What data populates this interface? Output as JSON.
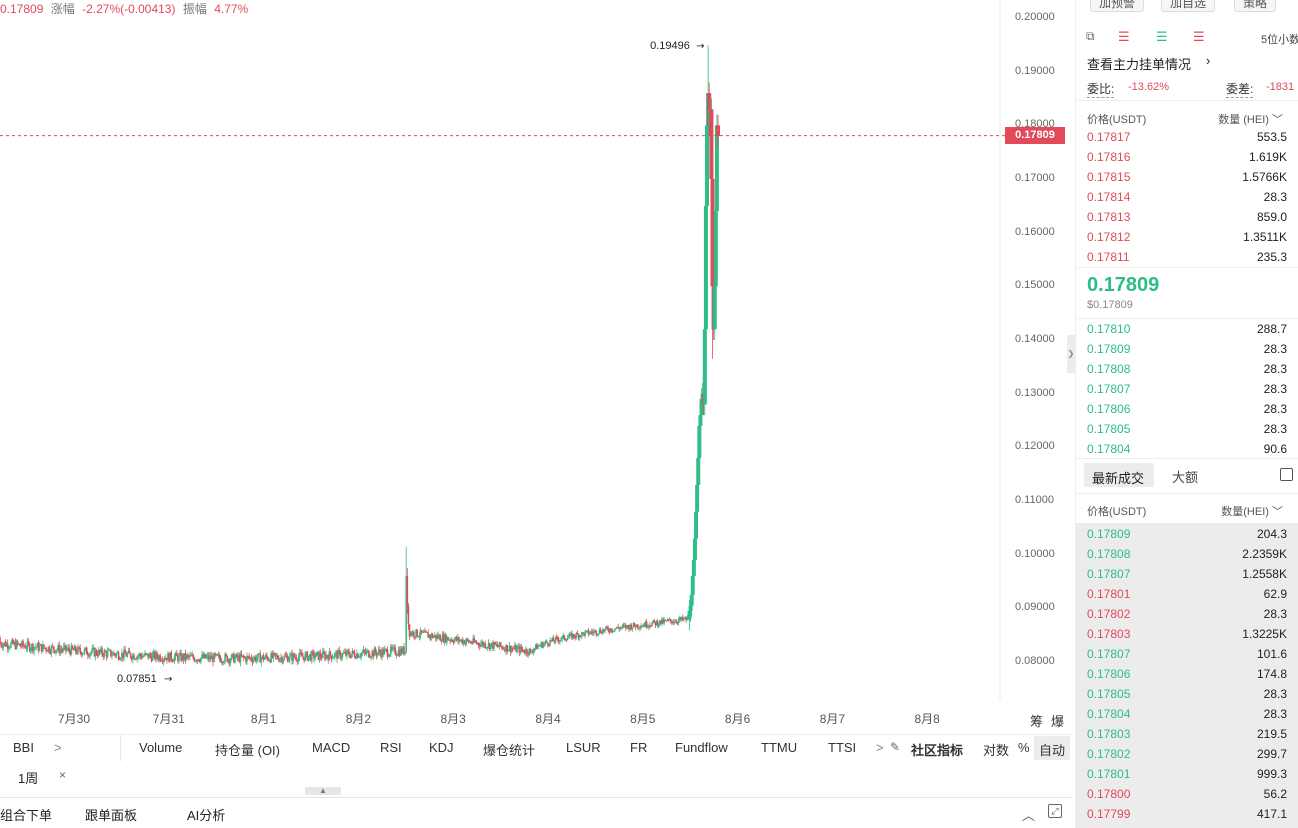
{
  "header": {
    "price": "0.17809",
    "change_label": "涨幅",
    "change": "-2.27%(-0.00413)",
    "amplitude_label": "振幅",
    "amplitude": "4.77%"
  },
  "chart_data": {
    "type": "candlestick",
    "y_ticks": [
      "0.20000",
      "0.19000",
      "0.18000",
      "0.17000",
      "0.16000",
      "0.15000",
      "0.14000",
      "0.13000",
      "0.12000",
      "0.11000",
      "0.10000",
      "0.09000",
      "0.08000"
    ],
    "ylim": [
      0.0775,
      0.2015
    ],
    "x_ticks": [
      "7月30",
      "7月31",
      "8月1",
      "8月2",
      "8月3",
      "8月4",
      "8月5",
      "8月6",
      "8月7",
      "8月8"
    ],
    "last_price_tag": "0.17809",
    "high_marker": "0.19496",
    "low_marker": "0.07851",
    "colors": {
      "up": "#2ebd85",
      "down": "#e04a59"
    }
  },
  "chart_controls": {
    "chips_label": "筹",
    "liquidation_label": "爆"
  },
  "indicators": {
    "left": "BBI",
    "items": [
      "Volume",
      "持仓量 (OI)",
      "MACD",
      "RSI",
      "KDJ",
      "爆仓统计",
      "LSUR",
      "FR",
      "Fundflow",
      "TTMU",
      "TTSI"
    ],
    "community": "社区指标",
    "log_label": "对数",
    "percent_label": "%",
    "auto_label": "自动"
  },
  "timeframe": {
    "active": "1周"
  },
  "bottom_tabs": [
    "组合下单",
    "跟单面板",
    "AI分析"
  ],
  "right_panel": {
    "top_buttons": [
      "加预警",
      "加自选",
      "策略"
    ],
    "precision": "5位小数",
    "main_orders_link": "查看主力挂单情况",
    "ratio_label": "委比:",
    "ratio": "-13.62%",
    "diff_label": "委差:",
    "diff": "-1831",
    "price_col": "价格(USDT)",
    "qty_col": "数量 (HEI)",
    "asks": [
      {
        "p": "0.17817",
        "q": "553.5"
      },
      {
        "p": "0.17816",
        "q": "1.619K"
      },
      {
        "p": "0.17815",
        "q": "1.5766K"
      },
      {
        "p": "0.17814",
        "q": "28.3"
      },
      {
        "p": "0.17813",
        "q": "859.0"
      },
      {
        "p": "0.17812",
        "q": "1.3511K"
      },
      {
        "p": "0.17811",
        "q": "235.3"
      }
    ],
    "last_price": "0.17809",
    "last_price_usd": "$0.17809",
    "bids": [
      {
        "p": "0.17810",
        "q": "288.7"
      },
      {
        "p": "0.17809",
        "q": "28.3"
      },
      {
        "p": "0.17808",
        "q": "28.3"
      },
      {
        "p": "0.17807",
        "q": "28.3"
      },
      {
        "p": "0.17806",
        "q": "28.3"
      },
      {
        "p": "0.17805",
        "q": "28.3"
      },
      {
        "p": "0.17804",
        "q": "90.6"
      }
    ],
    "trades_tab_active": "最新成交",
    "trades_tab_other": "大额",
    "trades_price_col": "价格(USDT)",
    "trades_qty_col": "数量(HEI)",
    "trades": [
      {
        "p": "0.17809",
        "q": "204.3",
        "side": "up"
      },
      {
        "p": "0.17808",
        "q": "2.2359K",
        "side": "up"
      },
      {
        "p": "0.17807",
        "q": "1.2558K",
        "side": "up"
      },
      {
        "p": "0.17801",
        "q": "62.9",
        "side": "down"
      },
      {
        "p": "0.17802",
        "q": "28.3",
        "side": "down"
      },
      {
        "p": "0.17803",
        "q": "1.3225K",
        "side": "down"
      },
      {
        "p": "0.17807",
        "q": "101.6",
        "side": "up"
      },
      {
        "p": "0.17806",
        "q": "174.8",
        "side": "up"
      },
      {
        "p": "0.17805",
        "q": "28.3",
        "side": "up"
      },
      {
        "p": "0.17804",
        "q": "28.3",
        "side": "up"
      },
      {
        "p": "0.17803",
        "q": "219.5",
        "side": "up"
      },
      {
        "p": "0.17802",
        "q": "299.7",
        "side": "up"
      },
      {
        "p": "0.17801",
        "q": "999.3",
        "side": "up"
      },
      {
        "p": "0.17800",
        "q": "56.2",
        "side": "down"
      },
      {
        "p": "0.17799",
        "q": "417.1",
        "side": "down"
      }
    ]
  }
}
